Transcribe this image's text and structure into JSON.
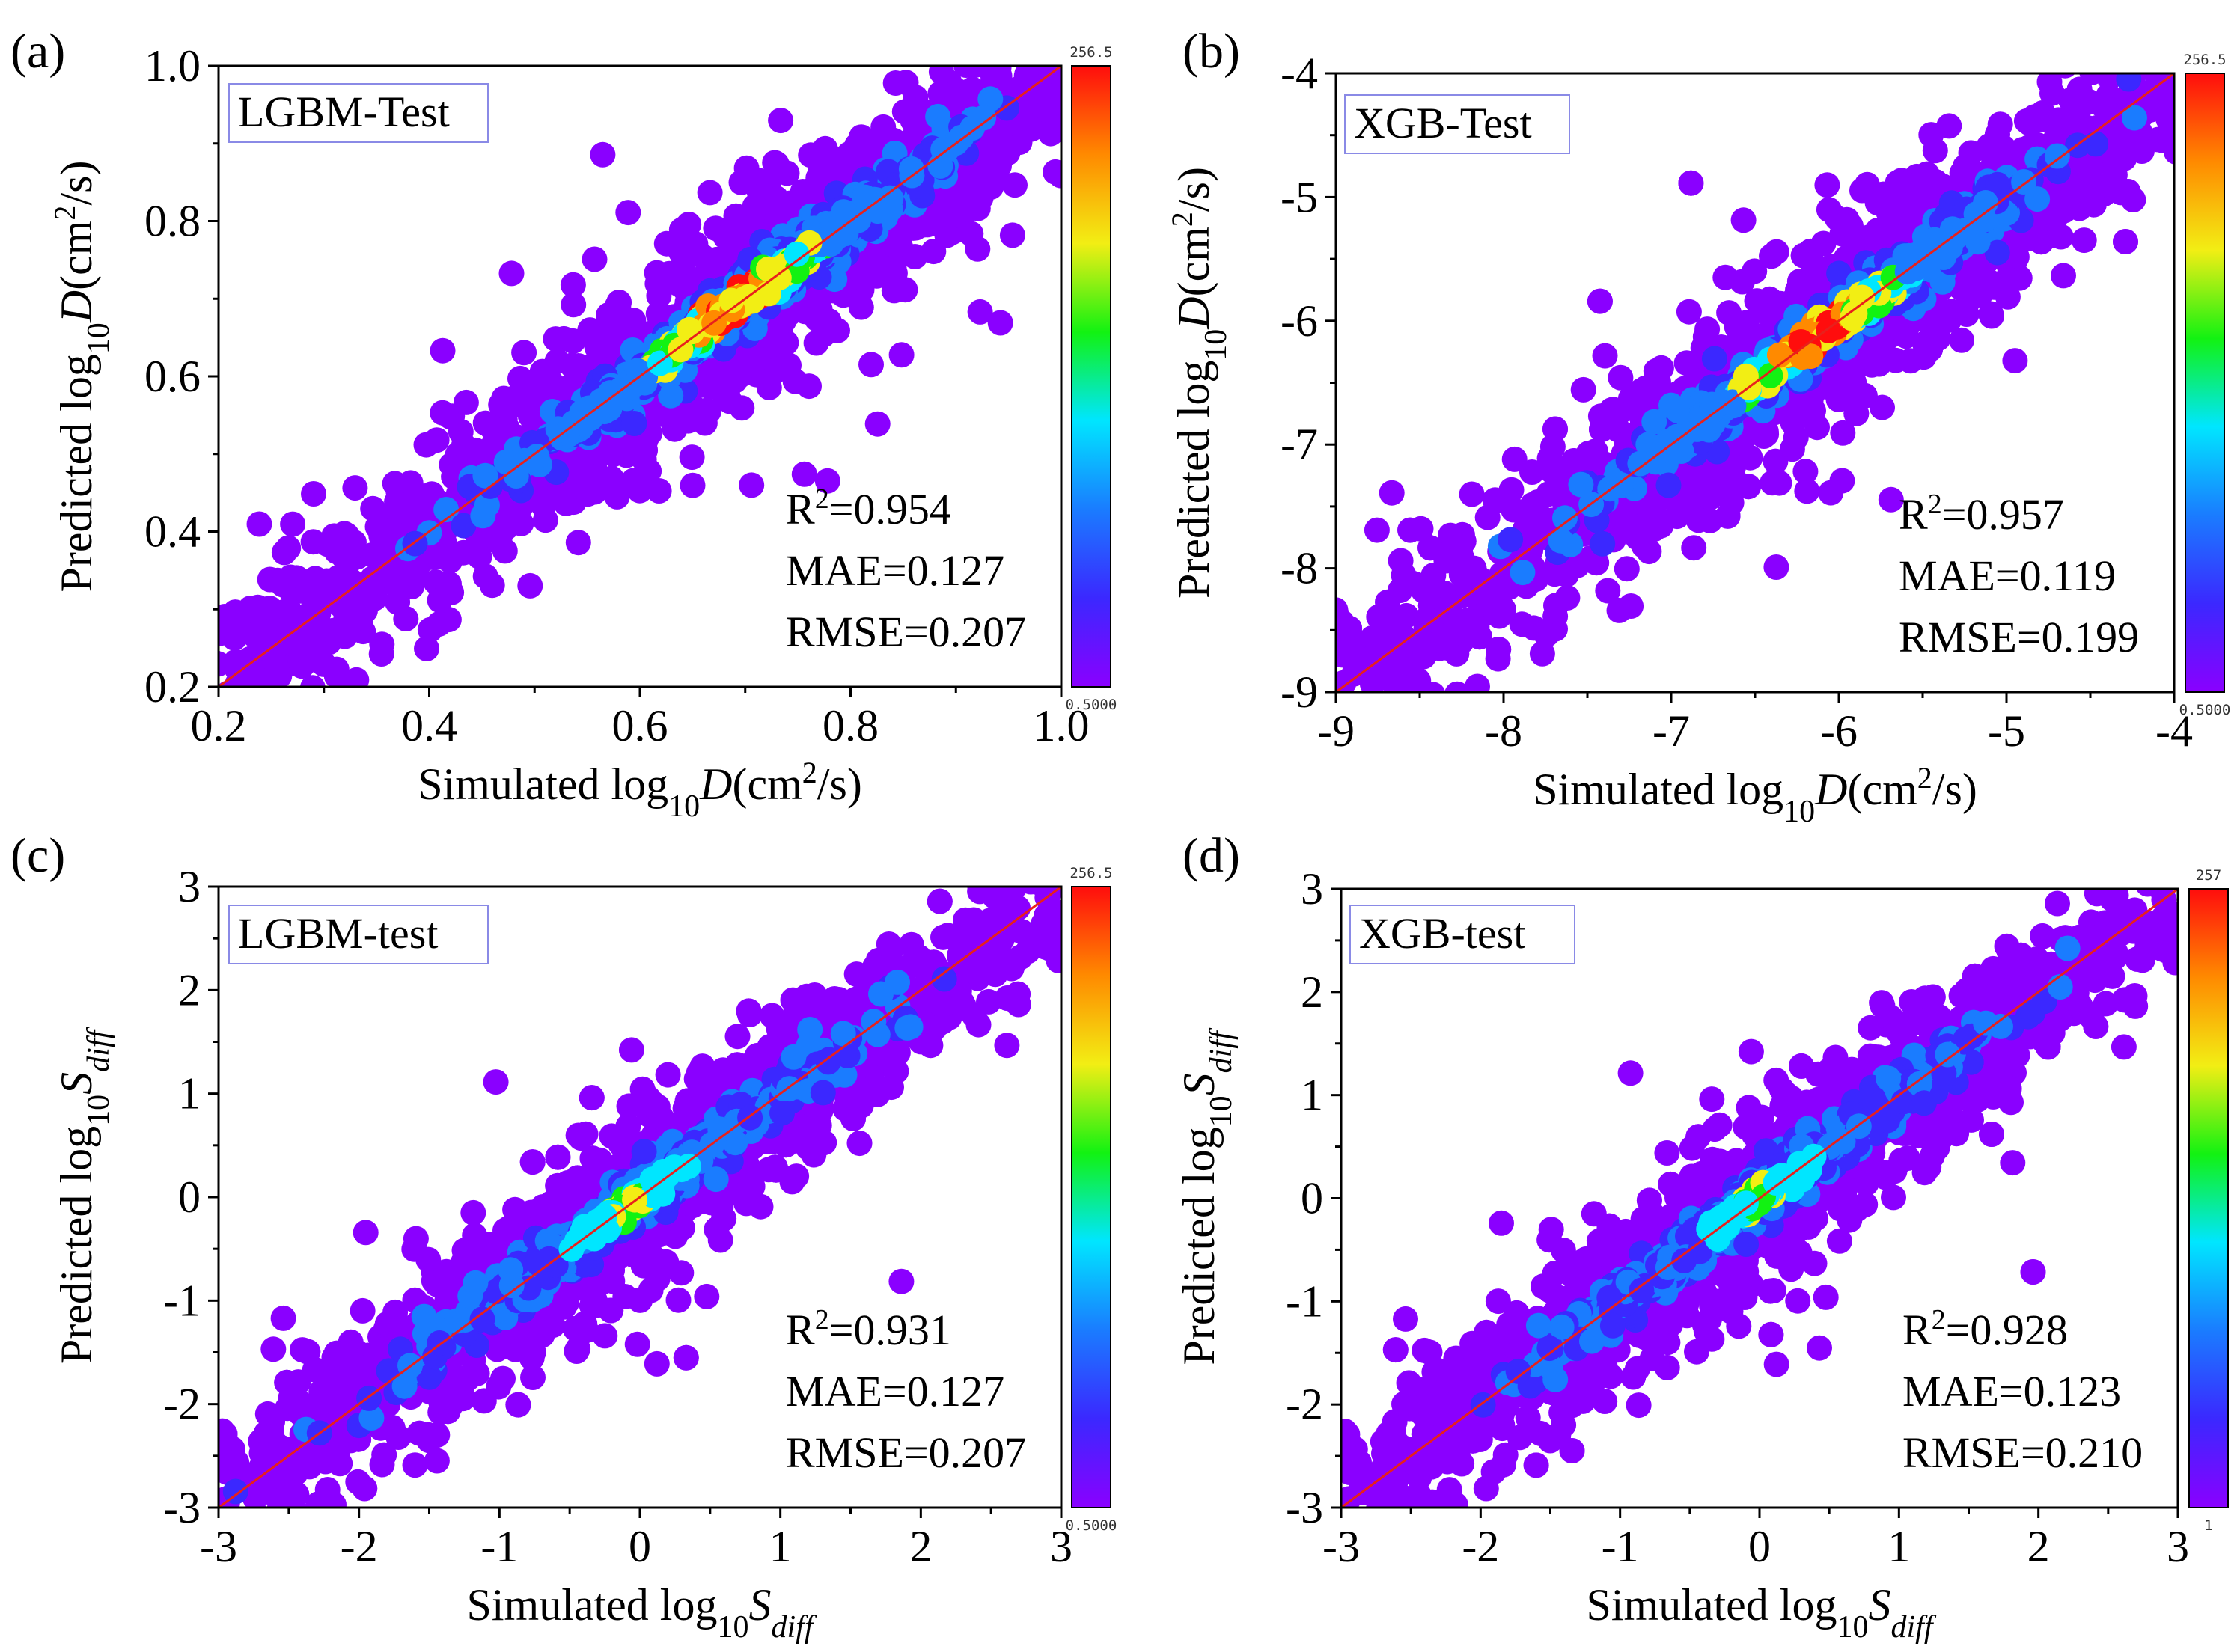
{
  "colors": {
    "reference_line": "#e8201c",
    "axis": "#000000",
    "legend_box_border": "#8a8ae6",
    "colormap": [
      "#8a00ff",
      "#3b28ff",
      "#1a7cff",
      "#00e6ff",
      "#12f212",
      "#f2ee14",
      "#ff8a00",
      "#ff0d0d"
    ]
  },
  "chart_data": [
    {
      "type": "scatter",
      "panel_label": "(a)",
      "legend_label": "LGBM-Test",
      "xlabel": {
        "prefix": "Simulated log",
        "sub": "10",
        "var": "D",
        "unit_pre": "(cm",
        "unit_sup": "2",
        "unit_post": "/s)"
      },
      "ylabel": {
        "prefix": "Predicted  log",
        "sub": "10",
        "var": "D",
        "unit_pre": "(cm",
        "unit_sup": "2",
        "unit_post": "/s)"
      },
      "xlim": [
        0.2,
        1.0
      ],
      "ylim": [
        0.2,
        1.0
      ],
      "xticks": [
        "0.2",
        "0.4",
        "0.6",
        "0.8",
        "1.0"
      ],
      "yticks": [
        "0.2",
        "0.4",
        "0.6",
        "0.8",
        "1.0"
      ],
      "metrics": {
        "r2_value": "=0.954",
        "mae": "MAE=0.127",
        "rmse": "RMSE=0.207"
      },
      "colorbar": {
        "max": "256.5",
        "min": "0.5000"
      },
      "density_hotspot": [
        0.69,
        0.7
      ],
      "spread": 0.045
    },
    {
      "type": "scatter",
      "panel_label": "(b)",
      "legend_label": "XGB-Test",
      "xlabel": {
        "prefix": "Simulated log",
        "sub": "10",
        "var": "D",
        "unit_pre": "(cm",
        "unit_sup": "2",
        "unit_post": "/s)"
      },
      "ylabel": {
        "prefix": "Predicted  log",
        "sub": "10",
        "var": "D",
        "unit_pre": "(cm",
        "unit_sup": "2",
        "unit_post": "/s)"
      },
      "xlim": [
        -9,
        -4
      ],
      "ylim": [
        -9,
        -4
      ],
      "xticks": [
        "-9",
        "-8",
        "-7",
        "-6",
        "-5",
        "-4"
      ],
      "yticks": [
        "-9",
        "-8",
        "-7",
        "-6",
        "-5",
        "-4"
      ],
      "metrics": {
        "r2_value": "=0.957",
        "mae": "MAE=0.119",
        "rmse": "RMSE=0.199"
      },
      "colorbar": {
        "max": "256.5",
        "min": "0.5000"
      },
      "density_hotspot": [
        -6.1,
        -6.1
      ],
      "spread": 0.28
    },
    {
      "type": "scatter",
      "panel_label": "(c)",
      "legend_label": "LGBM-test",
      "xlabel": {
        "prefix": "Simulated log",
        "sub": "10",
        "var": "S",
        "var_sub": "diff"
      },
      "ylabel": {
        "prefix": "Predicted log",
        "sub": "10",
        "var": "S",
        "var_sub": "diff"
      },
      "xlim": [
        -3,
        3
      ],
      "ylim": [
        -3,
        3
      ],
      "xticks": [
        "-3",
        "-2",
        "-1",
        "0",
        "1",
        "2",
        "3"
      ],
      "yticks": [
        "-3",
        "-2",
        "-1",
        "0",
        "1",
        "2",
        "3"
      ],
      "metrics": {
        "r2_value": "=0.931",
        "mae": "MAE=0.127",
        "rmse": "RMSE=0.207"
      },
      "colorbar": {
        "max": "256.5",
        "min": "0.5000"
      },
      "density_hotspot": [
        -0.1,
        -0.05
      ],
      "spread": 0.3
    },
    {
      "type": "scatter",
      "panel_label": "(d)",
      "legend_label": "XGB-test",
      "xlabel": {
        "prefix": "Simulated log",
        "sub": "10",
        "var": "S",
        "var_sub": "diff"
      },
      "ylabel": {
        "prefix": "Predicted log",
        "sub": "10",
        "var": "S",
        "var_sub": "diff"
      },
      "xlim": [
        -3,
        3
      ],
      "ylim": [
        -3,
        3
      ],
      "xticks": [
        "-3",
        "-2",
        "-1",
        "0",
        "1",
        "2",
        "3"
      ],
      "yticks": [
        "-3",
        "-2",
        "-1",
        "0",
        "1",
        "2",
        "3"
      ],
      "metrics": {
        "r2_value": "=0.928",
        "mae": "MAE=0.123",
        "rmse": "RMSE=0.210"
      },
      "colorbar": {
        "max": "257",
        "min": "1"
      },
      "density_hotspot": [
        0.0,
        0.0
      ],
      "spread": 0.3
    }
  ]
}
